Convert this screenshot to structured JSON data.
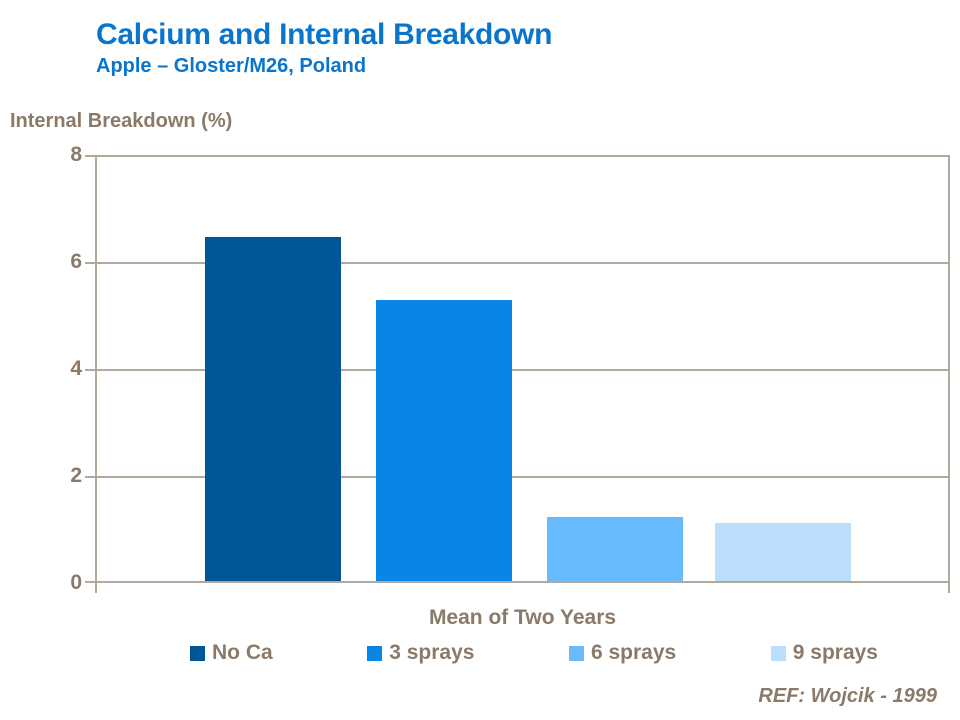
{
  "slide": {
    "title": "Calcium and Internal Breakdown",
    "subtitle": "Apple – Gloster/M26, Poland",
    "footnote": "REF: Wojcik - 1999"
  },
  "chart_data": {
    "type": "bar",
    "title": "Calcium and Internal Breakdown",
    "subtitle": "Apple – Gloster/M26, Poland",
    "ylabel": "Internal Breakdown (%)",
    "xlabel": "Mean of Two Years",
    "categories": [
      "Mean of Two Years"
    ],
    "series": [
      {
        "name": "No Ca",
        "values": [
          6.5
        ],
        "color": "#005796"
      },
      {
        "name": "3 sprays",
        "values": [
          5.3
        ],
        "color": "#0786e8"
      },
      {
        "name": "6 sprays",
        "values": [
          1.2
        ],
        "color": "#67bbfc"
      },
      {
        "name": "9 sprays",
        "values": [
          1.1
        ],
        "color": "#badefc"
      }
    ],
    "ylim": [
      0,
      8
    ],
    "yticks": [
      0,
      2,
      4,
      6,
      8
    ],
    "ytick_labels_top_to_bottom": [
      "8",
      "6",
      "4",
      "2",
      "0"
    ],
    "grid": "horizontal",
    "legend_position": "bottom",
    "annotation": "REF: Wojcik - 1999"
  },
  "colors": {
    "title_blue": "#0a75cd",
    "axis_line": "#b2a89b",
    "label_brown": "#8b7a68",
    "background": "#ffffff"
  }
}
